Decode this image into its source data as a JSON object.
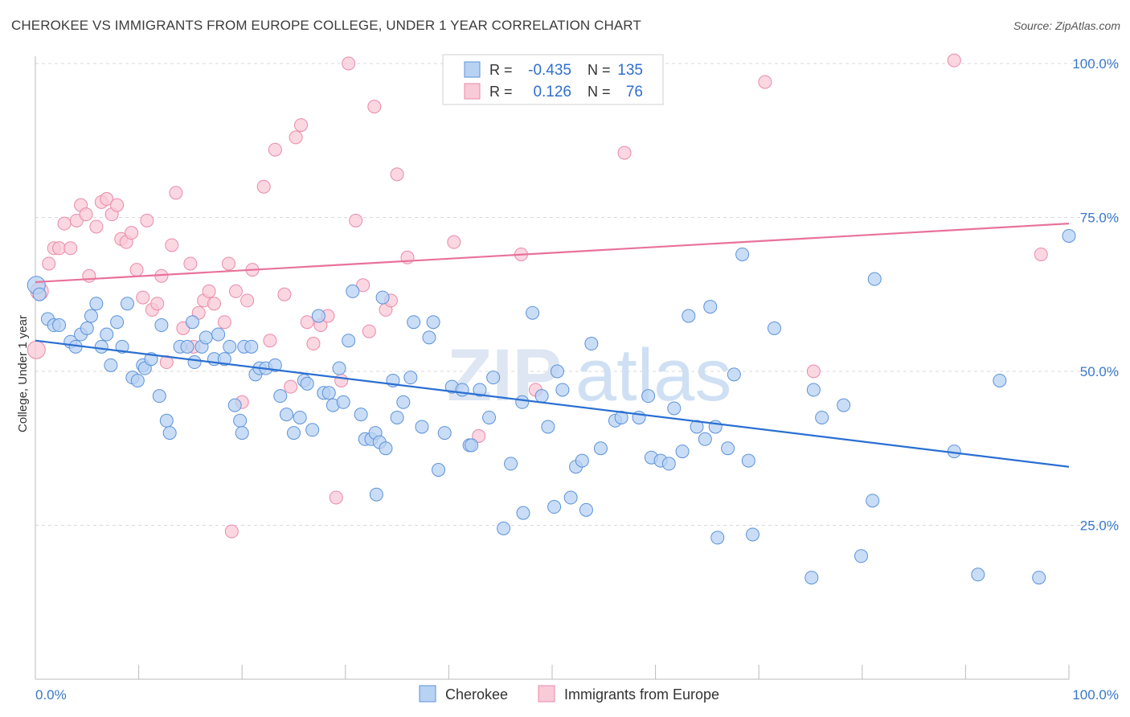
{
  "title": "CHEROKEE VS IMMIGRANTS FROM EUROPE COLLEGE, UNDER 1 YEAR CORRELATION CHART",
  "source": "Source: ZipAtlas.com",
  "watermark": {
    "zip": "ZIP",
    "atlas": "atlas"
  },
  "colors": {
    "blue_fill": "#b8d2f3",
    "blue_stroke": "#5b93d9",
    "blue_line": "#2a6fd2",
    "pink_fill": "#f9cad8",
    "pink_stroke": "#e98aa9",
    "pink_line": "#e8729a",
    "grid": "#d9d9d9",
    "tick_text": "#3a78c8"
  },
  "legend": {
    "r_label": "R =",
    "n_label": "N =",
    "rows": [
      {
        "series": "Cherokee",
        "r": "-0.435",
        "n": "135"
      },
      {
        "series": "Immigrants from Europe",
        "r": "0.126",
        "n": "76"
      }
    ]
  },
  "chart_data": {
    "type": "scatter",
    "title": "CHEROKEE VS IMMIGRANTS FROM EUROPE COLLEGE, UNDER 1 YEAR CORRELATION CHART",
    "xlabel": "",
    "ylabel": "College, Under 1 year",
    "xlim": [
      0,
      100
    ],
    "ylim": [
      0,
      105
    ],
    "x_tick_labels": [
      "0.0%",
      "100.0%"
    ],
    "y_tick_labels": [
      "25.0%",
      "50.0%",
      "75.0%",
      "100.0%"
    ],
    "y_ticks": [
      25,
      50,
      75,
      100
    ],
    "legend_position": "bottom-center",
    "series": [
      {
        "name": "Cherokee",
        "trend": {
          "x": [
            0,
            100
          ],
          "y": [
            55,
            34.5
          ]
        },
        "points": [
          [
            0.1,
            64
          ],
          [
            0.4,
            62.5
          ],
          [
            1.2,
            58.5
          ],
          [
            1.8,
            57.5
          ],
          [
            2.3,
            57.5
          ],
          [
            3.4,
            54.8
          ],
          [
            3.9,
            54
          ],
          [
            4.4,
            56
          ],
          [
            5.0,
            57
          ],
          [
            5.4,
            59
          ],
          [
            5.9,
            61
          ],
          [
            6.4,
            54
          ],
          [
            6.9,
            56
          ],
          [
            7.3,
            51
          ],
          [
            7.9,
            58
          ],
          [
            8.4,
            54
          ],
          [
            8.9,
            61
          ],
          [
            9.4,
            49
          ],
          [
            9.9,
            48.5
          ],
          [
            10.4,
            51
          ],
          [
            10.6,
            50.5
          ],
          [
            11.2,
            52
          ],
          [
            12.0,
            46
          ],
          [
            12.2,
            57.5
          ],
          [
            12.7,
            42
          ],
          [
            13.0,
            40
          ],
          [
            14.0,
            54
          ],
          [
            14.7,
            54
          ],
          [
            15.2,
            58
          ],
          [
            15.4,
            51.5
          ],
          [
            16.1,
            54
          ],
          [
            16.5,
            55.5
          ],
          [
            17.3,
            52
          ],
          [
            17.7,
            56
          ],
          [
            18.3,
            52
          ],
          [
            18.8,
            54
          ],
          [
            19.3,
            44.5
          ],
          [
            19.8,
            42
          ],
          [
            20.2,
            54
          ],
          [
            20.9,
            54
          ],
          [
            21.3,
            49.5
          ],
          [
            21.7,
            50.5
          ],
          [
            22.3,
            50.5
          ],
          [
            23.2,
            51
          ],
          [
            23.7,
            46
          ],
          [
            24.3,
            43
          ],
          [
            25.0,
            40
          ],
          [
            25.6,
            42.5
          ],
          [
            26.0,
            48.5
          ],
          [
            26.3,
            48
          ],
          [
            26.8,
            40.5
          ],
          [
            27.4,
            59
          ],
          [
            27.9,
            46.5
          ],
          [
            28.4,
            46.5
          ],
          [
            28.8,
            44.5
          ],
          [
            29.4,
            50.5
          ],
          [
            29.8,
            45
          ],
          [
            30.3,
            55
          ],
          [
            30.7,
            63
          ],
          [
            31.5,
            43
          ],
          [
            31.9,
            39
          ],
          [
            32.5,
            39
          ],
          [
            32.9,
            40
          ],
          [
            33.3,
            38.5
          ],
          [
            33.9,
            37.5
          ],
          [
            33.6,
            62
          ],
          [
            34.6,
            48.5
          ],
          [
            35.0,
            42.5
          ],
          [
            35.6,
            45
          ],
          [
            36.3,
            49
          ],
          [
            36.6,
            58
          ],
          [
            37.4,
            41
          ],
          [
            38.1,
            55.5
          ],
          [
            38.5,
            58
          ],
          [
            39.6,
            40
          ],
          [
            40.3,
            47.5
          ],
          [
            41.3,
            47
          ],
          [
            42.0,
            38
          ],
          [
            42.2,
            38
          ],
          [
            43.0,
            47
          ],
          [
            43.9,
            42.5
          ],
          [
            44.3,
            49
          ],
          [
            45.3,
            24.5
          ],
          [
            46.0,
            35
          ],
          [
            47.1,
            45
          ],
          [
            47.2,
            27
          ],
          [
            48.1,
            59.5
          ],
          [
            49.0,
            46
          ],
          [
            49.6,
            41
          ],
          [
            50.2,
            28
          ],
          [
            50.5,
            50
          ],
          [
            51.0,
            47
          ],
          [
            51.8,
            29.5
          ],
          [
            52.3,
            34.5
          ],
          [
            52.9,
            35.5
          ],
          [
            53.3,
            27.5
          ],
          [
            53.8,
            54.5
          ],
          [
            54.7,
            37.5
          ],
          [
            56.1,
            42
          ],
          [
            56.7,
            42.5
          ],
          [
            58.4,
            42.5
          ],
          [
            59.3,
            46
          ],
          [
            59.6,
            36
          ],
          [
            60.5,
            35.5
          ],
          [
            61.3,
            35
          ],
          [
            61.8,
            44
          ],
          [
            62.6,
            37
          ],
          [
            63.2,
            59
          ],
          [
            64.0,
            41
          ],
          [
            64.8,
            39
          ],
          [
            65.3,
            60.5
          ],
          [
            65.8,
            41
          ],
          [
            67.0,
            37.5
          ],
          [
            67.6,
            49.5
          ],
          [
            68.4,
            69
          ],
          [
            69.0,
            35.5
          ],
          [
            69.4,
            23.5
          ],
          [
            71.5,
            57
          ],
          [
            75.1,
            16.5
          ],
          [
            75.3,
            47
          ],
          [
            76.1,
            42.5
          ],
          [
            78.2,
            44.5
          ],
          [
            79.9,
            20
          ],
          [
            81.0,
            29
          ],
          [
            81.2,
            65
          ],
          [
            88.9,
            37
          ],
          [
            91.2,
            17
          ],
          [
            93.3,
            48.5
          ],
          [
            97.1,
            16.5
          ],
          [
            100,
            72
          ],
          [
            39,
            34
          ],
          [
            33,
            30
          ],
          [
            66,
            23
          ],
          [
            20,
            40
          ]
        ]
      },
      {
        "name": "Immigrants from Europe",
        "trend": {
          "x": [
            0,
            100
          ],
          "y": [
            64.5,
            74
          ]
        },
        "points": [
          [
            0.1,
            53.5
          ],
          [
            0.4,
            63
          ],
          [
            1.3,
            67.5
          ],
          [
            1.8,
            70
          ],
          [
            2.3,
            70
          ],
          [
            2.8,
            74
          ],
          [
            3.4,
            70
          ],
          [
            4.0,
            74.5
          ],
          [
            4.4,
            77
          ],
          [
            4.9,
            75.5
          ],
          [
            5.2,
            65.5
          ],
          [
            5.9,
            73.5
          ],
          [
            6.4,
            77.5
          ],
          [
            6.9,
            78
          ],
          [
            7.4,
            75.5
          ],
          [
            7.9,
            77
          ],
          [
            8.3,
            71.5
          ],
          [
            8.8,
            71
          ],
          [
            9.3,
            72.5
          ],
          [
            9.8,
            66.5
          ],
          [
            10.4,
            62
          ],
          [
            10.8,
            74.5
          ],
          [
            11.3,
            60
          ],
          [
            11.8,
            61
          ],
          [
            12.2,
            65.5
          ],
          [
            12.7,
            51.5
          ],
          [
            13.2,
            70.5
          ],
          [
            13.6,
            79
          ],
          [
            14.3,
            57
          ],
          [
            15.0,
            67.5
          ],
          [
            15.3,
            54
          ],
          [
            15.8,
            59.5
          ],
          [
            16.3,
            61.5
          ],
          [
            16.8,
            63
          ],
          [
            17.3,
            61
          ],
          [
            18.3,
            58
          ],
          [
            18.7,
            67.5
          ],
          [
            19.0,
            24
          ],
          [
            19.4,
            63
          ],
          [
            20.0,
            45
          ],
          [
            20.5,
            61.5
          ],
          [
            21.0,
            66.5
          ],
          [
            22.1,
            80
          ],
          [
            22.7,
            55
          ],
          [
            23.2,
            86
          ],
          [
            24.1,
            62.5
          ],
          [
            24.7,
            47.5
          ],
          [
            25.2,
            88
          ],
          [
            25.7,
            90
          ],
          [
            26.3,
            58
          ],
          [
            26.9,
            54.5
          ],
          [
            27.6,
            57.5
          ],
          [
            28.3,
            59
          ],
          [
            29.1,
            29.5
          ],
          [
            29.6,
            48.5
          ],
          [
            30.3,
            100
          ],
          [
            31.0,
            74.5
          ],
          [
            31.7,
            64
          ],
          [
            32.3,
            56.5
          ],
          [
            32.8,
            93
          ],
          [
            33.9,
            60
          ],
          [
            34.4,
            61.5
          ],
          [
            35.0,
            82
          ],
          [
            36.0,
            68.5
          ],
          [
            40.5,
            71
          ],
          [
            42.9,
            39.5
          ],
          [
            47.0,
            69
          ],
          [
            48.4,
            47
          ],
          [
            57.0,
            85.5
          ],
          [
            70.6,
            97
          ],
          [
            75.3,
            50
          ],
          [
            88.9,
            100.5
          ],
          [
            97.3,
            69
          ]
        ]
      }
    ]
  },
  "bottom_legend": [
    "Cherokee",
    "Immigrants from Europe"
  ]
}
